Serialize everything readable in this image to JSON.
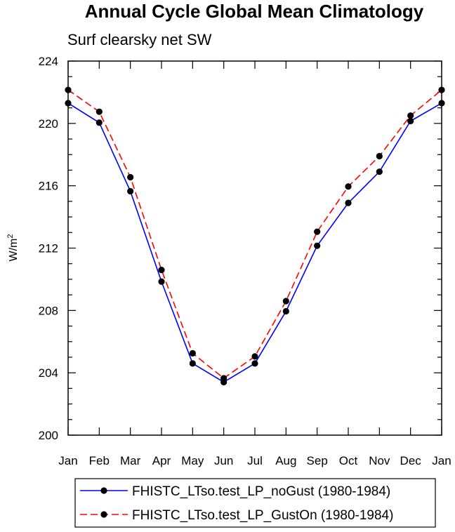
{
  "chart_data": {
    "type": "line",
    "title": "Annual Cycle Global Mean Climatology",
    "subtitle": "Surf clearsky net SW",
    "ylabel": "W/m",
    "ylabel_superscript": "2",
    "xlabel": "",
    "categories": [
      "Jan",
      "Feb",
      "Mar",
      "Apr",
      "May",
      "Jun",
      "Jul",
      "Aug",
      "Sep",
      "Oct",
      "Nov",
      "Dec",
      "Jan"
    ],
    "ylim": [
      200,
      224
    ],
    "yticks": [
      200,
      204,
      208,
      212,
      216,
      220,
      224
    ],
    "ytick_labels": [
      "200",
      "204",
      "208",
      "212",
      "216",
      "220",
      "224"
    ],
    "grid": false,
    "legend_position": "bottom",
    "series": [
      {
        "name": "FHISTC_LTso.test_LP_noGust (1980-1984)",
        "color": "#0000ff",
        "dash": "solid",
        "marker": "filled-circle",
        "values": [
          221.3,
          220.05,
          215.65,
          209.85,
          204.6,
          203.4,
          204.6,
          207.95,
          212.15,
          214.9,
          216.9,
          220.15,
          221.3
        ]
      },
      {
        "name": "FHISTC_LTso.test_LP_GustOn (1980-1984)",
        "color": "#ff0000",
        "dash": "dashed",
        "marker": "filled-circle",
        "values": [
          222.15,
          220.75,
          216.55,
          210.6,
          205.25,
          203.65,
          205.05,
          208.6,
          213.05,
          215.95,
          217.9,
          220.5,
          222.15
        ]
      }
    ]
  }
}
